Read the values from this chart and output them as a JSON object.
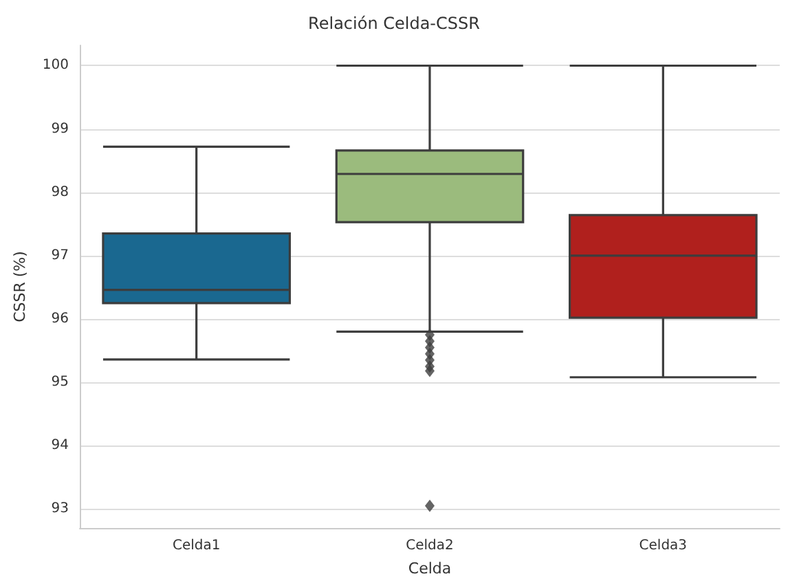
{
  "chart_data": {
    "type": "box",
    "title": "Relación Celda-CSSR",
    "xlabel": "Celda",
    "ylabel": "CSSR (%)",
    "categories": [
      "Celda1",
      "Celda2",
      "Celda3"
    ],
    "colors": [
      "#1a6890",
      "#9bbb7d",
      "#b0201d"
    ],
    "boxes": [
      {
        "low": 95.36,
        "q1": 96.25,
        "median": 96.46,
        "q3": 97.35,
        "high": 98.72
      },
      {
        "low": 95.8,
        "q1": 97.53,
        "median": 98.29,
        "q3": 98.66,
        "high": 100,
        "outliers": [
          95.75,
          95.65,
          95.55,
          95.45,
          95.35,
          95.25,
          95.18,
          93.05
        ]
      },
      {
        "low": 95.08,
        "q1": 96.02,
        "median": 97.0,
        "q3": 97.64,
        "high": 100
      }
    ],
    "ylim": [
      92.7,
      100.32
    ],
    "yticks": [
      93,
      94,
      95,
      96,
      97,
      98,
      99,
      100
    ],
    "grid": "y",
    "marker": "diamond"
  }
}
